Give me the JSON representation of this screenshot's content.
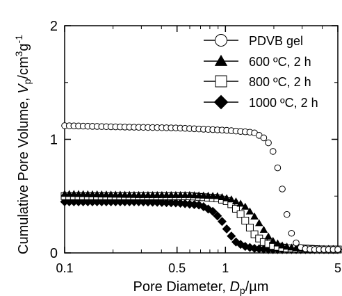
{
  "chart_data": {
    "type": "scatter",
    "xlabel_parts": [
      "Pore Diameter, ",
      "D",
      "p",
      "/µm"
    ],
    "ylabel_parts": [
      "Cumulative Pore Volume, ",
      "V",
      "p",
      "/cm",
      "3",
      "g",
      "-1"
    ],
    "x_scale": "log",
    "xlim": [
      0.1,
      5
    ],
    "ylim": [
      0,
      2
    ],
    "x_ticks": [
      0.1,
      0.5,
      1,
      5
    ],
    "x_tick_labels": [
      "0.1",
      "0.5",
      "1",
      "5"
    ],
    "y_ticks": [
      0,
      1,
      2
    ],
    "y_tick_labels": [
      "0",
      "1",
      "2"
    ],
    "legend_position": "top-right",
    "series": [
      {
        "name": "PDVB gel",
        "marker": "open-circle",
        "color": "#000000",
        "x": [
          0.1,
          0.2,
          0.5,
          1.0,
          1.5,
          1.8,
          2.0,
          2.2,
          2.4,
          2.6,
          2.8,
          3.0,
          3.5,
          4.0,
          5.0
        ],
        "y": [
          1.12,
          1.11,
          1.1,
          1.08,
          1.06,
          1.0,
          0.88,
          0.65,
          0.35,
          0.15,
          0.07,
          0.04,
          0.03,
          0.03,
          0.03
        ]
      },
      {
        "name": "600 ºC, 2 h",
        "marker": "filled-triangle",
        "color": "#000000",
        "x": [
          0.1,
          0.3,
          0.6,
          0.9,
          1.1,
          1.3,
          1.5,
          1.7,
          1.9,
          2.2,
          2.5,
          3.0,
          4.0,
          5.0
        ],
        "y": [
          0.52,
          0.51,
          0.51,
          0.5,
          0.47,
          0.42,
          0.33,
          0.22,
          0.12,
          0.07,
          0.05,
          0.04,
          0.03,
          0.03
        ]
      },
      {
        "name": "800 ºC, 2 h",
        "marker": "open-square",
        "color": "#000000",
        "x": [
          0.1,
          0.3,
          0.6,
          0.9,
          1.05,
          1.2,
          1.35,
          1.5,
          1.7,
          2.0,
          2.4,
          3.0,
          4.0,
          5.0
        ],
        "y": [
          0.5,
          0.5,
          0.5,
          0.48,
          0.45,
          0.37,
          0.27,
          0.17,
          0.1,
          0.06,
          0.04,
          0.04,
          0.03,
          0.03
        ]
      },
      {
        "name": "1000 ºC, 2 h",
        "marker": "filled-diamond",
        "color": "#000000",
        "x": [
          0.1,
          0.3,
          0.5,
          0.7,
          0.85,
          0.95,
          1.05,
          1.15,
          1.3,
          1.5,
          1.8,
          2.2,
          3.0,
          4.0,
          5.0
        ],
        "y": [
          0.45,
          0.45,
          0.44,
          0.42,
          0.36,
          0.28,
          0.18,
          0.1,
          0.06,
          0.04,
          0.03,
          0.03,
          0.03,
          0.03,
          0.03
        ]
      }
    ]
  }
}
